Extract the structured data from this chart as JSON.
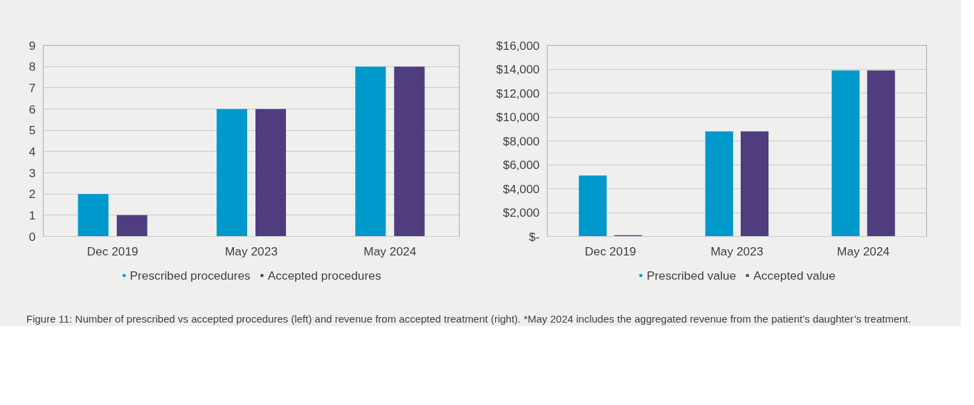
{
  "chart_data": [
    {
      "type": "bar",
      "categories": [
        "Dec 2019",
        "May 2023",
        "May 2024"
      ],
      "series": [
        {
          "name": "Prescribed procedures",
          "color": "#0099cc",
          "values": [
            2,
            6,
            8
          ]
        },
        {
          "name": "Accepted procedures",
          "color": "#4f3d7f",
          "values": [
            1,
            6,
            8
          ]
        }
      ],
      "ylim": [
        0,
        9
      ],
      "yticks": [
        0,
        1,
        2,
        3,
        4,
        5,
        6,
        7,
        8,
        9
      ],
      "grid": "y",
      "legend": "bottom"
    },
    {
      "type": "bar",
      "categories": [
        "Dec 2019",
        "May 2023",
        "May 2024"
      ],
      "series": [
        {
          "name": "Prescribed value",
          "color": "#0099cc",
          "values": [
            5100,
            8800,
            13900
          ]
        },
        {
          "name": "Accepted value",
          "color": "#4f3d7f",
          "values": [
            100,
            8800,
            13900
          ]
        }
      ],
      "ylim": [
        0,
        16000
      ],
      "yticks": [
        {
          "value": 0,
          "label": "$-"
        },
        {
          "value": 2000,
          "label": "$2,000"
        },
        {
          "value": 4000,
          "label": "$4,000"
        },
        {
          "value": 6000,
          "label": "$6,000"
        },
        {
          "value": 8000,
          "label": "$8,000"
        },
        {
          "value": 10000,
          "label": "$10,000"
        },
        {
          "value": 12000,
          "label": "$12,000"
        },
        {
          "value": 14000,
          "label": "$14,000"
        },
        {
          "value": 16000,
          "label": "$16,000"
        }
      ],
      "grid": "y",
      "legend": "bottom",
      "annotations": [
        "Figure 11: Number of prescribed vs accepted procedures (left) and revenue from accepted treatment (right). *May 2024 includes the aggregated revenue from the patient’s daughter’s treatment."
      ]
    }
  ]
}
